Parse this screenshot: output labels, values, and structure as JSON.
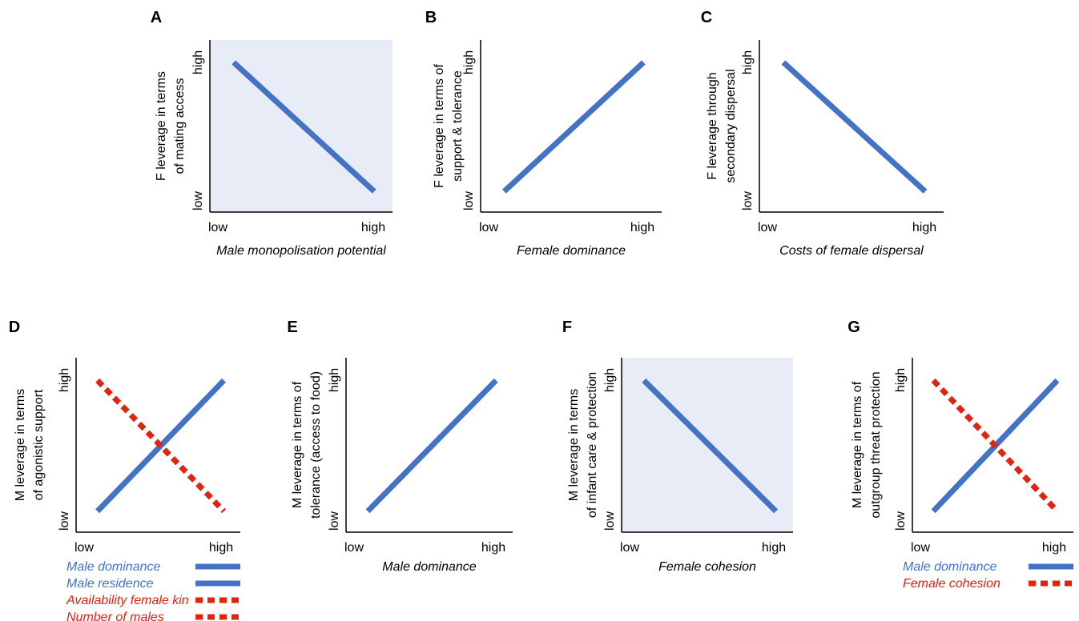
{
  "colors": {
    "blue": "#4472c4",
    "red": "#e02411",
    "shade": "#e8ecf6",
    "axis": "#000000"
  },
  "chart_data": [
    {
      "panel": "A",
      "type": "line",
      "shaded": true,
      "ylabel": [
        "F leverage in terms",
        "of mating access"
      ],
      "xlabel": "Male monopolisation potential",
      "xticks": [
        "low",
        "high"
      ],
      "yticks": [
        "low",
        "high"
      ],
      "xlim": [
        0,
        1
      ],
      "ylim": [
        0,
        1
      ],
      "series": [
        {
          "style": "solid",
          "color": "#4472c4",
          "x": [
            0.13,
            0.9
          ],
          "y": [
            0.87,
            0.12
          ]
        }
      ],
      "legend": []
    },
    {
      "panel": "B",
      "type": "line",
      "shaded": false,
      "ylabel": [
        "F leverage in terms of",
        "support & tolerance"
      ],
      "xlabel": "Female dominance",
      "xticks": [
        "low",
        "high"
      ],
      "yticks": [
        "low",
        "high"
      ],
      "xlim": [
        0,
        1
      ],
      "ylim": [
        0,
        1
      ],
      "series": [
        {
          "style": "solid",
          "color": "#4472c4",
          "x": [
            0.13,
            0.9
          ],
          "y": [
            0.12,
            0.87
          ]
        }
      ],
      "legend": []
    },
    {
      "panel": "C",
      "type": "line",
      "shaded": false,
      "ylabel": [
        "F leverage through",
        "secondary dispersal"
      ],
      "xlabel": "Costs of female dispersal",
      "xticks": [
        "low",
        "high"
      ],
      "yticks": [
        "low",
        "high"
      ],
      "xlim": [
        0,
        1
      ],
      "ylim": [
        0,
        1
      ],
      "series": [
        {
          "style": "solid",
          "color": "#4472c4",
          "x": [
            0.13,
            0.9
          ],
          "y": [
            0.87,
            0.12
          ]
        }
      ],
      "legend": []
    },
    {
      "panel": "D",
      "type": "line",
      "shaded": false,
      "ylabel": [
        "M leverage in terms",
        "of agonistic support"
      ],
      "xlabel": "",
      "xticks": [
        "low",
        "high"
      ],
      "yticks": [
        "low",
        "high"
      ],
      "xlim": [
        0,
        1
      ],
      "ylim": [
        0,
        1
      ],
      "series": [
        {
          "style": "solid",
          "color": "#4472c4",
          "x": [
            0.13,
            0.9
          ],
          "y": [
            0.12,
            0.87
          ]
        },
        {
          "style": "dashed",
          "color": "#e02411",
          "x": [
            0.13,
            0.9
          ],
          "y": [
            0.87,
            0.12
          ]
        }
      ],
      "legend": [
        {
          "label": "Male dominance",
          "style": "solid",
          "color": "#4472c4"
        },
        {
          "label": "Male residence",
          "style": "solid",
          "color": "#4472c4"
        },
        {
          "label": "Availability female kin",
          "style": "dashed",
          "color": "#e02411"
        },
        {
          "label": "Number of males",
          "style": "dashed",
          "color": "#e02411"
        }
      ]
    },
    {
      "panel": "E",
      "type": "line",
      "shaded": false,
      "ylabel": [
        "M leverage in terms of",
        "tolerance (access to food)"
      ],
      "xlabel": "Male dominance",
      "xticks": [
        "low",
        "high"
      ],
      "yticks": [
        "low",
        "high"
      ],
      "xlim": [
        0,
        1
      ],
      "ylim": [
        0,
        1
      ],
      "series": [
        {
          "style": "solid",
          "color": "#4472c4",
          "x": [
            0.13,
            0.9
          ],
          "y": [
            0.12,
            0.87
          ]
        }
      ],
      "legend": []
    },
    {
      "panel": "F",
      "type": "line",
      "shaded": true,
      "ylabel": [
        "M leverage in terms",
        "of infant care & protection"
      ],
      "xlabel": "Female cohesion",
      "xticks": [
        "low",
        "high"
      ],
      "yticks": [
        "low",
        "high"
      ],
      "xlim": [
        0,
        1
      ],
      "ylim": [
        0,
        1
      ],
      "series": [
        {
          "style": "solid",
          "color": "#4472c4",
          "x": [
            0.13,
            0.9
          ],
          "y": [
            0.87,
            0.12
          ]
        }
      ],
      "legend": []
    },
    {
      "panel": "G",
      "type": "line",
      "shaded": false,
      "ylabel": [
        "M leverage in terms of",
        "outgroup threat protection"
      ],
      "xlabel": "",
      "xticks": [
        "low",
        "high"
      ],
      "yticks": [
        "low",
        "high"
      ],
      "xlim": [
        0,
        1
      ],
      "ylim": [
        0,
        1
      ],
      "series": [
        {
          "style": "solid",
          "color": "#4472c4",
          "x": [
            0.13,
            0.9
          ],
          "y": [
            0.12,
            0.87
          ]
        },
        {
          "style": "dashed",
          "color": "#e02411",
          "x": [
            0.13,
            0.9
          ],
          "y": [
            0.87,
            0.12
          ]
        }
      ],
      "legend": [
        {
          "label": "Male dominance",
          "style": "solid",
          "color": "#4472c4"
        },
        {
          "label": "Female cohesion",
          "style": "dashed",
          "color": "#e02411"
        }
      ]
    }
  ]
}
